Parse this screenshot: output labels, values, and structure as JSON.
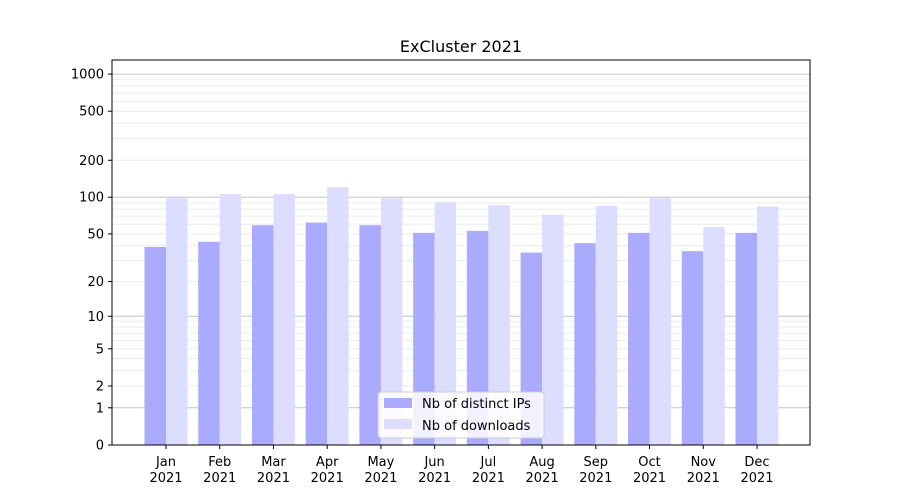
{
  "chart_data": {
    "type": "bar",
    "title": "ExCluster 2021",
    "xlabel": "",
    "ylabel": "",
    "yscale": "symlog",
    "ylim": [
      0,
      1300
    ],
    "grid": true,
    "legend_position": "bottom-center",
    "categories": [
      "Jan",
      "Feb",
      "Mar",
      "Apr",
      "May",
      "Jun",
      "Jul",
      "Aug",
      "Sep",
      "Oct",
      "Nov",
      "Dec"
    ],
    "category_sublabel": "2021",
    "yticks": [
      "0",
      "1",
      "2",
      "5",
      "10",
      "20",
      "50",
      "100",
      "200",
      "500",
      "1000"
    ],
    "series": [
      {
        "name": "Nb of distinct IPs",
        "color": "#aaaaff",
        "values": [
          39,
          43,
          59,
          62,
          59,
          51,
          53,
          35,
          42,
          51,
          36,
          51
        ]
      },
      {
        "name": "Nb of downloads",
        "color": "#ddddff",
        "values": [
          98,
          106,
          106,
          121,
          98,
          91,
          86,
          72,
          85,
          98,
          57,
          84
        ]
      }
    ]
  }
}
